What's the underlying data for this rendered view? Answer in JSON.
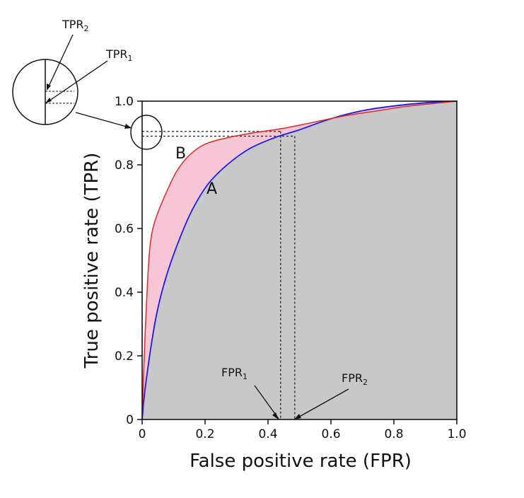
{
  "chart_data": {
    "type": "line",
    "xlabel": "False positive rate (FPR)",
    "ylabel": "True positive rate (TPR)",
    "xlim": [
      0,
      1
    ],
    "ylim": [
      0,
      1
    ],
    "x_ticks": [
      "0",
      "0.2",
      "0.4",
      "0.6",
      "0.8",
      "1.0"
    ],
    "y_ticks": [
      "0",
      "0.2",
      "0.4",
      "0.6",
      "0.8",
      "1.0"
    ],
    "grid": false,
    "series": [
      {
        "name": "A",
        "color": "#1a1aee",
        "fill": "#c8c8c8",
        "points": [
          [
            0,
            0
          ],
          [
            0.01,
            0.1
          ],
          [
            0.03,
            0.24
          ],
          [
            0.05,
            0.35
          ],
          [
            0.08,
            0.46
          ],
          [
            0.12,
            0.57
          ],
          [
            0.16,
            0.66
          ],
          [
            0.21,
            0.74
          ],
          [
            0.27,
            0.8
          ],
          [
            0.34,
            0.85
          ],
          [
            0.42,
            0.885
          ],
          [
            0.5,
            0.91
          ],
          [
            0.6,
            0.945
          ],
          [
            0.7,
            0.97
          ],
          [
            0.8,
            0.985
          ],
          [
            0.9,
            0.995
          ],
          [
            1,
            1
          ]
        ]
      },
      {
        "name": "B",
        "color": "#e02828",
        "fill": "#f7c6d6",
        "points": [
          [
            0,
            0
          ],
          [
            0.005,
            0.15
          ],
          [
            0.01,
            0.28
          ],
          [
            0.02,
            0.48
          ],
          [
            0.03,
            0.58
          ],
          [
            0.05,
            0.65
          ],
          [
            0.08,
            0.72
          ],
          [
            0.11,
            0.78
          ],
          [
            0.15,
            0.83
          ],
          [
            0.2,
            0.865
          ],
          [
            0.27,
            0.885
          ],
          [
            0.35,
            0.9
          ],
          [
            0.45,
            0.915
          ],
          [
            0.55,
            0.935
          ],
          [
            0.65,
            0.955
          ],
          [
            0.75,
            0.97
          ],
          [
            0.85,
            0.985
          ],
          [
            1,
            1
          ]
        ]
      }
    ],
    "annotations": {
      "curve_a_label": "A",
      "curve_b_label": "B",
      "fpr1": {
        "label": "FPR",
        "sub": "1",
        "x": 0.44
      },
      "fpr2": {
        "label": "FPR",
        "sub": "2",
        "x": 0.485
      },
      "tpr1": {
        "label": "TPR",
        "sub": "1",
        "y": 0.905
      },
      "tpr2": {
        "label": "TPR",
        "sub": "2",
        "y": 0.89
      }
    }
  }
}
